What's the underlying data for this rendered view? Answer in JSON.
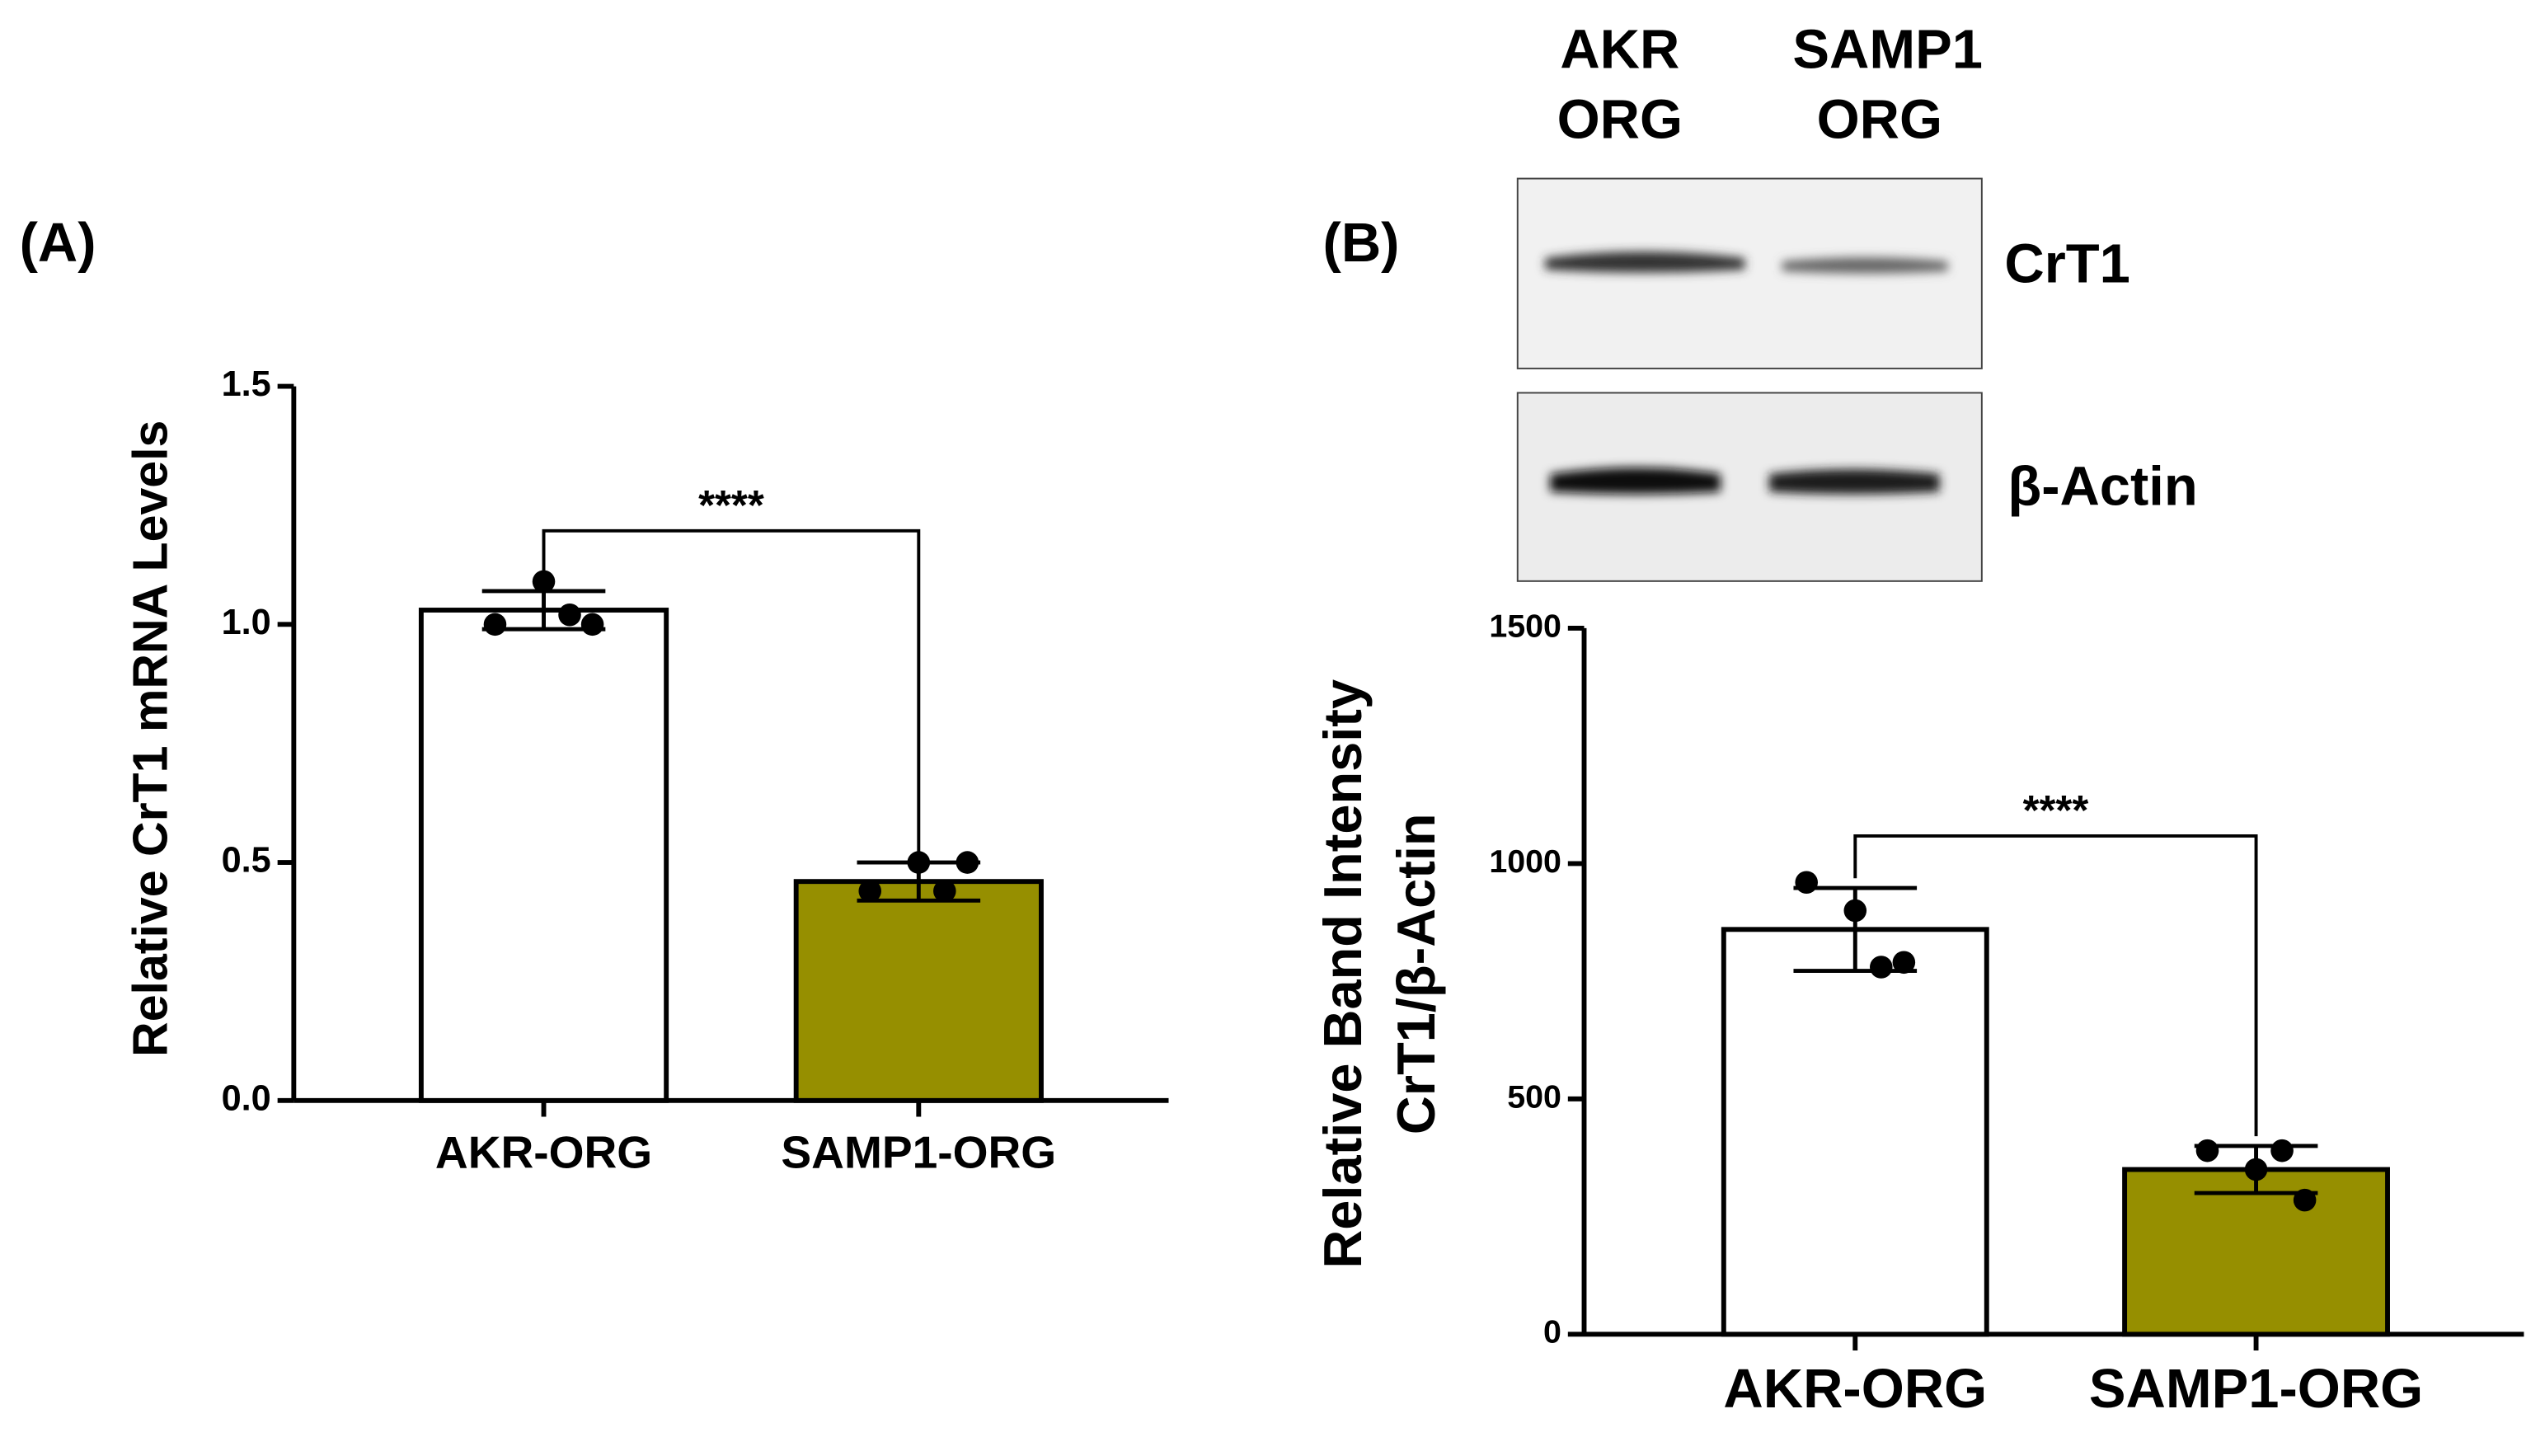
{
  "chart_data": [
    {
      "type": "bar",
      "panel_label": "(A)",
      "y_label": [
        "Relative CrT1 mRNA Levels"
      ],
      "categories": [
        "AKR-ORG",
        "SAMP1-ORG"
      ],
      "values": [
        1.03,
        0.46
      ],
      "errors": [
        0.04,
        0.04
      ],
      "points": [
        [
          1.0,
          1.09,
          1.02,
          1.0
        ],
        [
          0.44,
          0.5,
          0.44,
          0.5
        ]
      ],
      "colors": [
        "#ffffff",
        "#968f00"
      ],
      "ylim": [
        0,
        1.5
      ],
      "yticks": [
        {
          "value": 0,
          "label": "0.0"
        },
        0.5,
        {
          "value": 1,
          "label": "1.0"
        },
        1.5
      ],
      "annotation": "****"
    },
    {
      "type": "bar",
      "panel_label": "(B)",
      "y_label": [
        "Relative Band Intensity",
        "CrT1/β-Actin"
      ],
      "categories": [
        "AKR-ORG",
        "SAMP1-ORG"
      ],
      "values": [
        860,
        350
      ],
      "errors": [
        88,
        50
      ],
      "points": [
        [
          960,
          900,
          780,
          790
        ],
        [
          390,
          350,
          390,
          285
        ]
      ],
      "colors": [
        "#ffffff",
        "#968f00"
      ],
      "ylim": [
        0,
        1500
      ],
      "yticks": [
        0,
        500,
        1000,
        1500
      ],
      "annotation": "****"
    }
  ],
  "blot": {
    "lanes": [
      [
        "AKR",
        "ORG"
      ],
      [
        "SAMP1",
        "ORG"
      ]
    ],
    "bands": [
      "CrT1",
      "β-Actin"
    ]
  }
}
